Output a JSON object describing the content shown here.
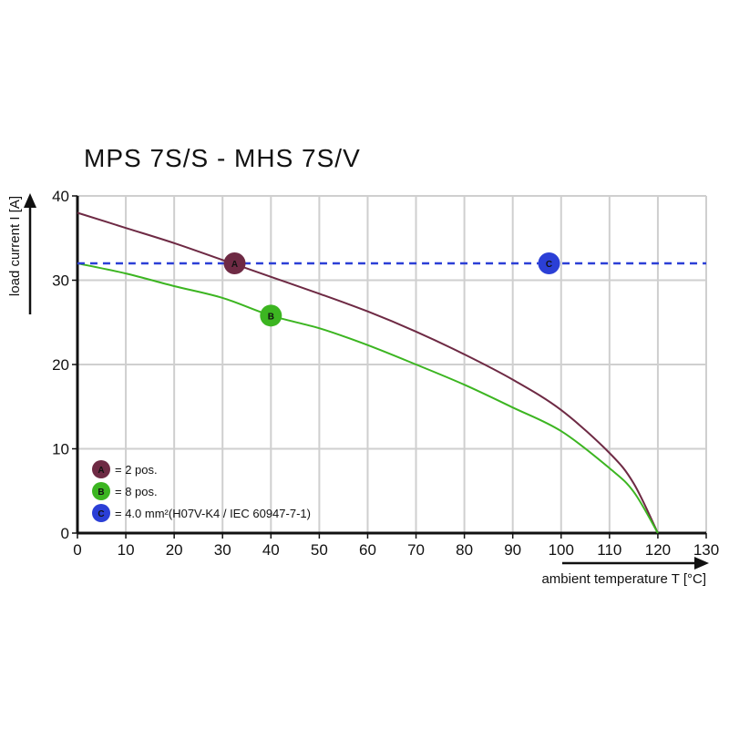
{
  "chart_data": {
    "type": "line",
    "title": "MPS 7S/S - MHS 7S/V",
    "xlabel": "ambient temperature T [°C]",
    "ylabel": "load current I [A]",
    "xlim": [
      0,
      130
    ],
    "ylim": [
      0,
      40
    ],
    "xticks": [
      "0",
      "10",
      "20",
      "30",
      "40",
      "50",
      "60",
      "70",
      "80",
      "90",
      "100",
      "110",
      "120",
      "130"
    ],
    "yticks": [
      "0",
      "10",
      "20",
      "30",
      "40"
    ],
    "grid": true,
    "series": [
      {
        "name": "A",
        "color": "#6e2a44",
        "style": "solid",
        "x": [
          0,
          10,
          20,
          30,
          40,
          50,
          60,
          70,
          80,
          90,
          100,
          110,
          115,
          120
        ],
        "y": [
          38,
          36.2,
          34.4,
          32.4,
          30.4,
          28.4,
          26.3,
          23.9,
          21.2,
          18.2,
          14.6,
          9.5,
          5.9,
          0
        ]
      },
      {
        "name": "B",
        "color": "#3cb521",
        "style": "solid",
        "x": [
          0,
          10,
          20,
          30,
          40,
          50,
          60,
          70,
          80,
          90,
          100,
          110,
          115,
          120
        ],
        "y": [
          32,
          30.8,
          29.3,
          27.9,
          25.8,
          24.3,
          22.3,
          20,
          17.6,
          14.9,
          12.1,
          7.7,
          4.9,
          0
        ]
      },
      {
        "name": "C",
        "color": "#2b3fd6",
        "style": "dashed",
        "x": [
          0,
          130
        ],
        "y": [
          32,
          32
        ]
      }
    ],
    "markers": [
      {
        "label": "A",
        "x": 32.5,
        "y": 32,
        "color": "#6e2a44"
      },
      {
        "label": "B",
        "x": 40,
        "y": 25.8,
        "color": "#3cb521"
      },
      {
        "label": "C",
        "x": 97.5,
        "y": 32,
        "color": "#2b3fd6"
      }
    ],
    "legend": {
      "placement": "bottom-left",
      "entries": [
        {
          "label": "A",
          "text": "= 2 pos.",
          "color": "#6e2a44"
        },
        {
          "label": "B",
          "text": "= 8 pos.",
          "color": "#3cb521"
        },
        {
          "label": "C",
          "text": "= 4.0 mm²(H07V-K4 / IEC 60947-7-1)",
          "color": "#2b3fd6"
        }
      ]
    }
  }
}
